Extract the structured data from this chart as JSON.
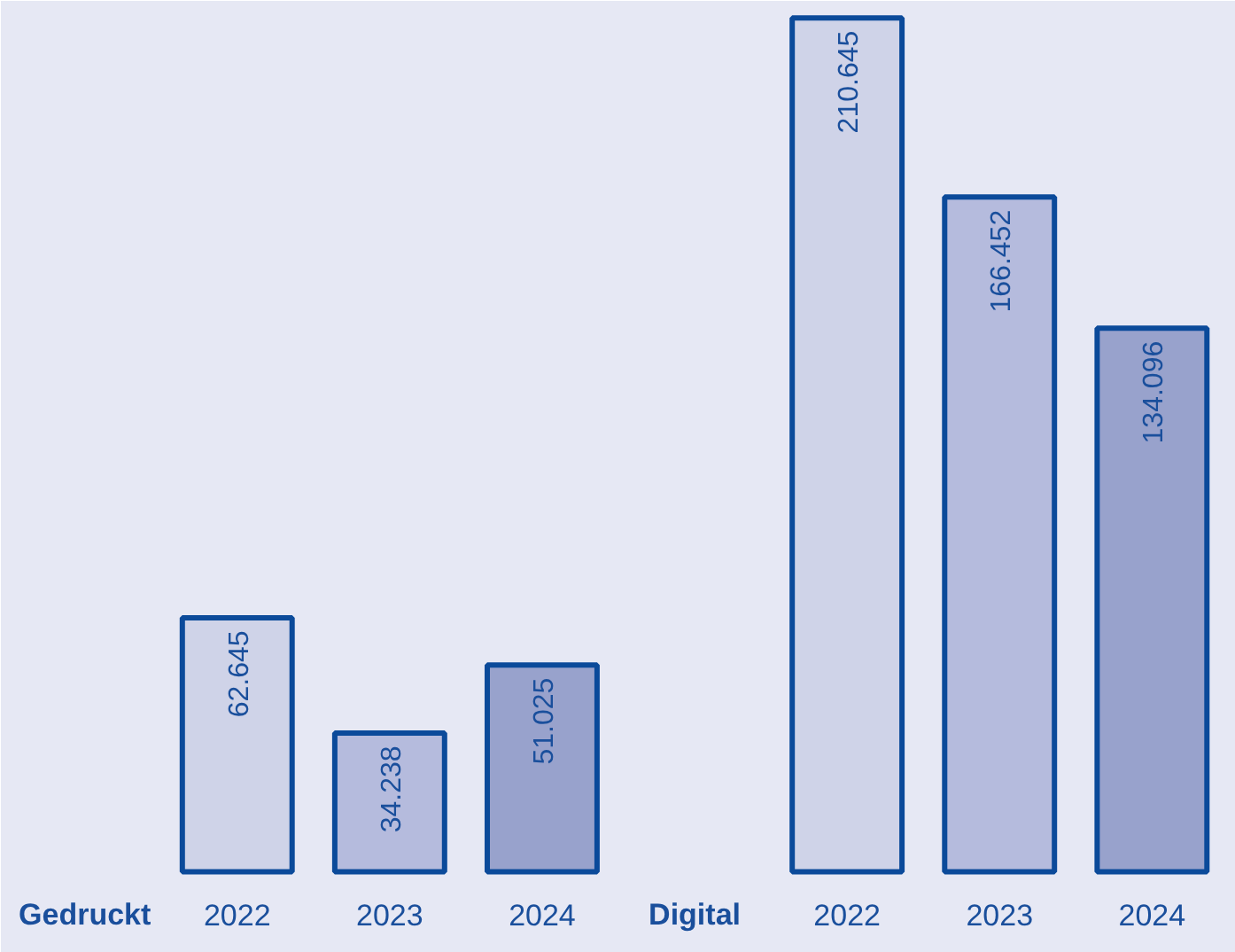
{
  "chart_data": {
    "type": "bar",
    "categories": [
      "Gedruckt",
      "2022",
      "2023",
      "2024",
      "Digital",
      "2022",
      "2023",
      "2024"
    ],
    "values": [
      null,
      62645,
      34238,
      51025,
      null,
      210645,
      166452,
      134096
    ],
    "value_labels": [
      null,
      "62.645",
      "34.238",
      "51.025",
      null,
      "210.645",
      "166.452",
      "134.096"
    ],
    "colors": [
      null,
      "#cfd3e8",
      "#b5bbdd",
      "#98a2cc",
      null,
      "#cfd3e8",
      "#b5bbdd",
      "#98a2cc"
    ],
    "grid": false
  }
}
